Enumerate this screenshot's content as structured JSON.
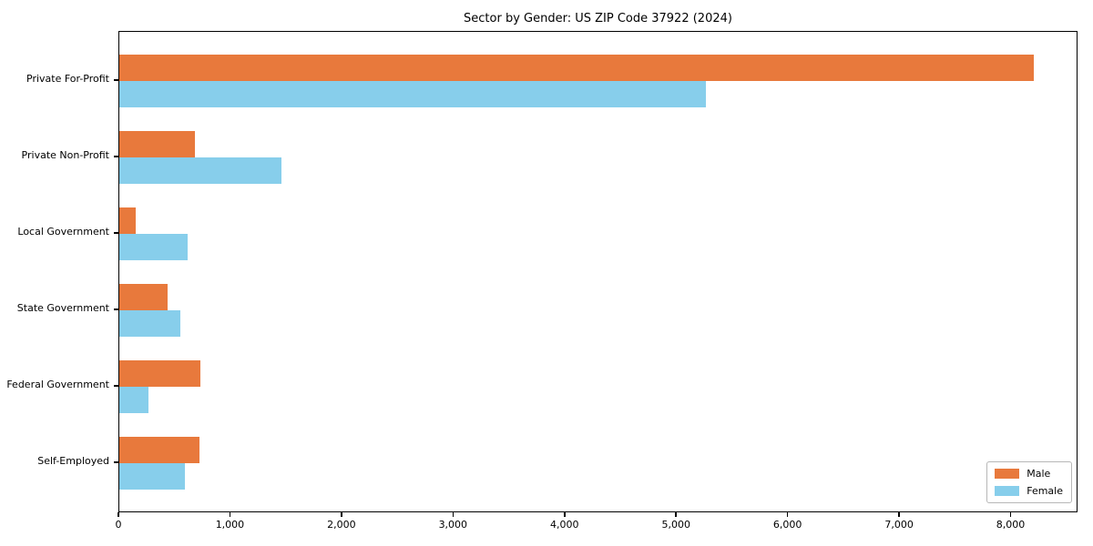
{
  "chart_data": {
    "type": "bar",
    "orientation": "horizontal",
    "title": "Sector by Gender: US ZIP Code 37922 (2024)",
    "categories": [
      "Private For-Profit",
      "Private Non-Profit",
      "Local Government",
      "State Government",
      "Federal Government",
      "Self-Employed"
    ],
    "series": [
      {
        "name": "Male",
        "color": "#E8793C",
        "values": [
          8200,
          680,
          150,
          430,
          730,
          720
        ]
      },
      {
        "name": "Female",
        "color": "#87CEEB",
        "values": [
          5260,
          1450,
          610,
          545,
          265,
          590
        ]
      }
    ],
    "xlabel": "",
    "ylabel": "",
    "xlim": [
      0,
      8600
    ],
    "xticks": [
      0,
      1000,
      2000,
      3000,
      4000,
      5000,
      6000,
      7000,
      8000
    ],
    "xtick_labels": [
      "0",
      "1,000",
      "2,000",
      "3,000",
      "4,000",
      "5,000",
      "6,000",
      "7,000",
      "8,000"
    ],
    "legend_position": "lower right",
    "grid": false
  }
}
